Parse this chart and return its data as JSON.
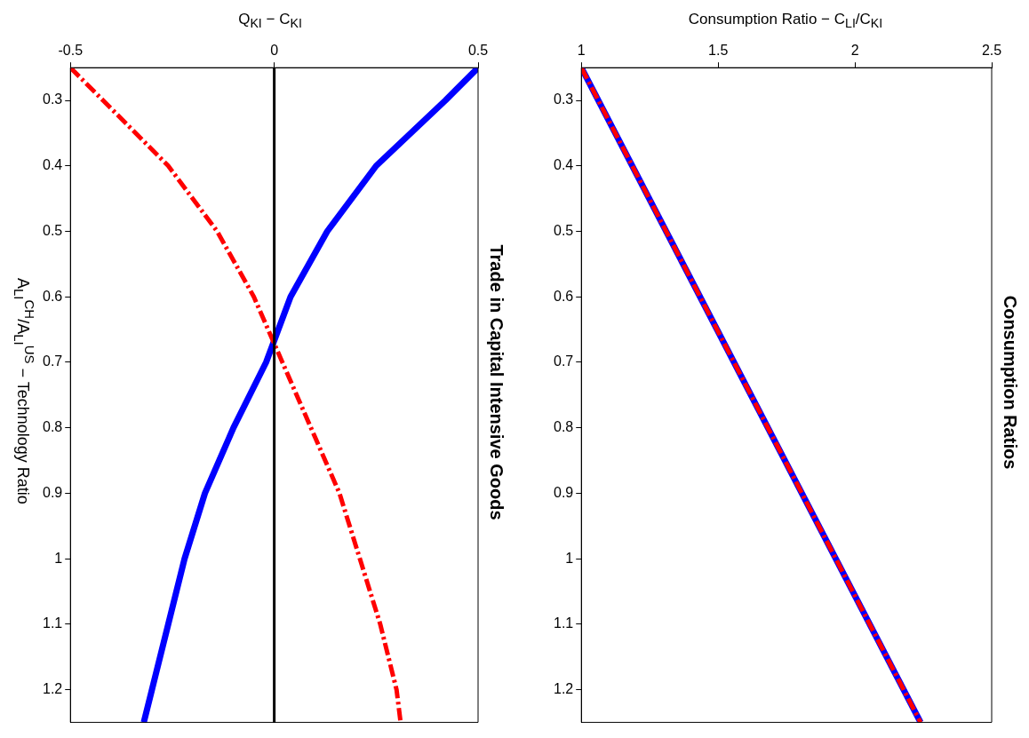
{
  "chart_data": [
    {
      "type": "line",
      "title": "Consumption Ratios",
      "xlabel": "Consumption Ratio − C$_{LI}$/C$_{KI}$",
      "series": [
        {
          "color": "#0000ff",
          "x": [
            1,
            2.24
          ],
          "values": [
            0.25,
            1.25
          ],
          "line_style": "solid"
        },
        {
          "color": "#ff0000",
          "x": [
            1,
            2.24
          ],
          "values": [
            0.25,
            1.25
          ],
          "line_style": "dashed"
        }
      ],
      "xlim": [
        1,
        2.5
      ],
      "xticks": [
        1,
        1.5,
        2,
        2.5
      ],
      "ylim": [
        1.25,
        0.25
      ],
      "yticks": [
        0.3,
        0.4,
        0.5,
        0.6,
        0.7,
        0.8,
        0.9,
        1,
        1.1,
        1.2
      ],
      "grid": false,
      "legend": false,
      "marker": "none"
    },
    {
      "type": "line",
      "title": "Trade in Capital Intensive Goods",
      "xlabel": "Q$_{KI}$ − C$_{KI}$",
      "ylabel": "A$_{LI}$$^{CH}$/A$_{LI}$$^{US}$ − Technology Ratio",
      "series": [
        {
          "color": "#0000ff",
          "x": [
            0.5,
            0.42,
            0.25,
            0.13,
            0.04,
            -0.02,
            -0.1,
            -0.17,
            -0.22,
            -0.26,
            -0.3,
            -0.32
          ],
          "values": [
            0.25,
            0.3,
            0.4,
            0.5,
            0.6,
            0.7,
            0.8,
            0.9,
            1,
            1.1,
            1.2,
            1.25
          ],
          "line_style": "solid"
        },
        {
          "color": "#ff0000",
          "x": [
            -0.5,
            -0.42,
            -0.26,
            -0.14,
            -0.05,
            0.02,
            0.09,
            0.16,
            0.21,
            0.26,
            0.3,
            0.31
          ],
          "values": [
            0.25,
            0.3,
            0.4,
            0.5,
            0.6,
            0.7,
            0.8,
            0.9,
            1,
            1.1,
            1.2,
            1.25
          ],
          "line_style": "dashed"
        }
      ],
      "ref_lines": [
        {
          "axis": "x",
          "value": 0,
          "color": "#000000"
        }
      ],
      "xlim": [
        -0.5,
        0.5
      ],
      "xticks": [
        -0.5,
        0,
        0.5
      ],
      "ylim": [
        1.25,
        0.25
      ],
      "yticks": [
        0.3,
        0.4,
        0.5,
        0.6,
        0.7,
        0.8,
        0.9,
        1,
        1.1,
        1.2
      ],
      "grid": false,
      "legend": false,
      "marker": "none"
    }
  ]
}
